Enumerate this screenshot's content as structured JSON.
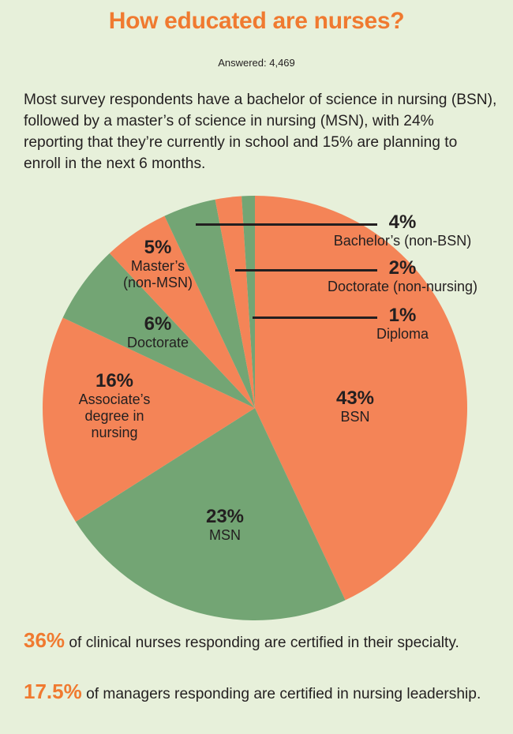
{
  "header": {
    "title": "How educated are nurses?",
    "answered": "Answered: 4,469",
    "intro": "Most survey respondents have a bachelor of science in nursing (BSN), followed by a master’s of science in nursing (MSN), with 24% reporting that they’re currently in school and 15% are planning to enroll in the next 6 months."
  },
  "colors": {
    "background": "#e7f0da",
    "orange": "#f48457",
    "green": "#73a574",
    "title": "#f07a30",
    "text": "#231f20"
  },
  "labels": {
    "bsn": {
      "pct": "43%",
      "name": "BSN"
    },
    "msn": {
      "pct": "23%",
      "name": "MSN"
    },
    "assoc": {
      "pct": "16%",
      "name1": "Associate’s",
      "name2": "degree in",
      "name3": "nursing"
    },
    "doct": {
      "pct": "6%",
      "name": "Doctorate"
    },
    "masters": {
      "pct": "5%",
      "name1": "Master’s",
      "name2": "(non-MSN)"
    },
    "bachelors": {
      "pct": "4%",
      "name": "Bachelor’s (non-BSN)"
    },
    "doctnon": {
      "pct": "2%",
      "name": "Doctorate (non-nursing)"
    },
    "diploma": {
      "pct": "1%",
      "name": "Diploma"
    }
  },
  "stats": [
    {
      "value": "36%",
      "text": " of clinical nurses responding are certified in their specialty."
    },
    {
      "value": "17.5%",
      "text": " of managers responding are certified in nursing leadership."
    }
  ],
  "chart_data": {
    "type": "pie",
    "title": "How educated are nurses?",
    "subtitle": "Answered: 4,469",
    "start_angle": "12 o'clock, clockwise",
    "categories": [
      "BSN",
      "MSN",
      "Associate’s degree in nursing",
      "Doctorate",
      "Master’s (non-MSN)",
      "Bachelor’s (non-BSN)",
      "Doctorate (non-nursing)",
      "Diploma"
    ],
    "values": [
      43,
      23,
      16,
      6,
      5,
      4,
      2,
      1
    ],
    "slice_colors": [
      "#f48457",
      "#73a574",
      "#f48457",
      "#73a574",
      "#f48457",
      "#73a574",
      "#f48457",
      "#73a574"
    ],
    "unit": "%"
  }
}
